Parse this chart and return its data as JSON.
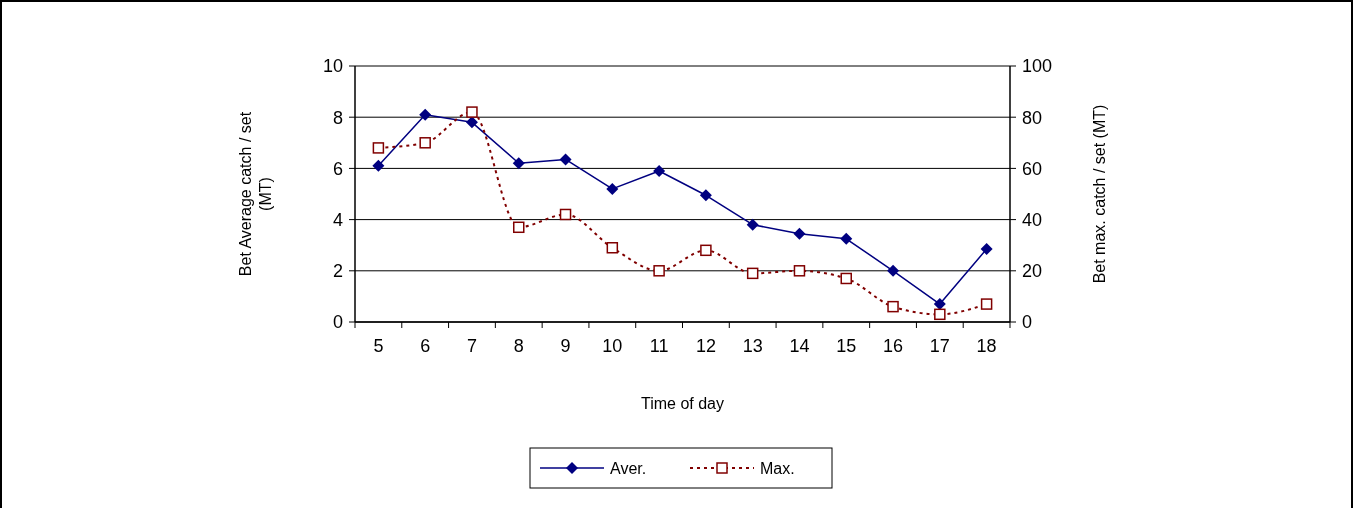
{
  "chart_data": {
    "type": "line",
    "xlabel": "Time of day",
    "ylabel": "Bet Average catch / set (MT)",
    "y2label": "Bet max. catch / set (MT)",
    "categories": [
      "5",
      "6",
      "7",
      "8",
      "9",
      "10",
      "11",
      "12",
      "13",
      "14",
      "15",
      "16",
      "17",
      "18"
    ],
    "series": [
      {
        "name": "Aver.",
        "color": "#000080",
        "marker": "diamond",
        "line_style": "solid",
        "values": [
          6.1,
          8.1,
          7.8,
          6.2,
          6.35,
          5.2,
          5.9,
          4.95,
          3.8,
          3.45,
          3.25,
          2.0,
          0.7,
          2.85
        ]
      },
      {
        "name": "Max.",
        "color": "#800000",
        "marker": "square",
        "line_style": "dotted",
        "axis": "y2",
        "values": [
          68,
          70,
          82,
          37,
          42,
          29,
          20,
          28,
          19,
          20,
          17,
          6,
          3,
          7
        ]
      }
    ],
    "ylim": [
      0,
      10
    ],
    "yticks": [
      0,
      2,
      4,
      6,
      8,
      10
    ],
    "y2lim": [
      0,
      100
    ],
    "y2ticks": [
      0,
      20,
      40,
      60,
      80,
      100
    ],
    "grid": "y",
    "legend": "bottom"
  }
}
